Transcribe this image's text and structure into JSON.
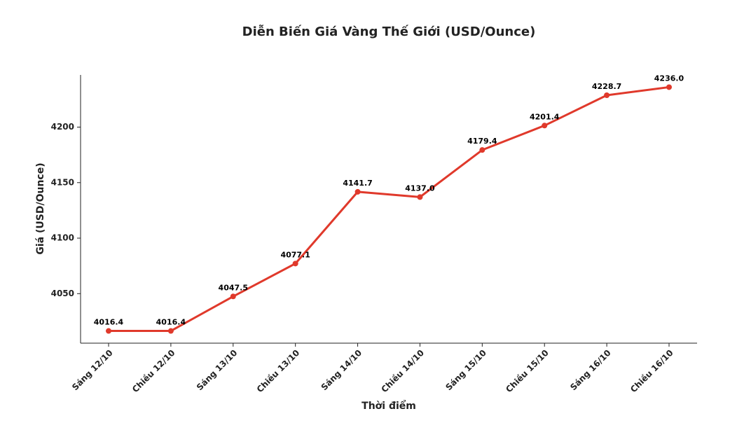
{
  "chart_data": {
    "type": "line",
    "title": "Diễn Biến Giá Vàng Thế Giới (USD/Ounce)",
    "x_label": "Thời điểm",
    "y_label": "Giá (USD/Ounce)",
    "categories": [
      "Sáng 12/10",
      "Chiều 12/10",
      "Sáng 13/10",
      "Chiều 13/10",
      "Sáng 14/10",
      "Chiều 14/10",
      "Sáng 15/10",
      "Chiều 15/10",
      "Sáng 16/10",
      "Chiều 16/10"
    ],
    "values": [
      4016.4,
      4016.4,
      4047.5,
      4077.1,
      4141.7,
      4137.0,
      4179.4,
      4201.4,
      4228.7,
      4236.0
    ],
    "value_labels": [
      "4016.4",
      "4016.4",
      "4047.5",
      "4077.1",
      "4141.7",
      "4137.0",
      "4179.4",
      "4201.4",
      "4228.7",
      "4236.0"
    ],
    "color": "#e0392b",
    "ylim": [
      4005.4,
      4247.0
    ],
    "yticks": [
      4050,
      4100,
      4150,
      4200
    ]
  }
}
